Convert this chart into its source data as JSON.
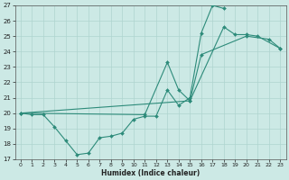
{
  "color": "#2d8b7a",
  "bg_color": "#cce9e5",
  "grid_major_color": "#aed4cf",
  "xlabel": "Humidex (Indice chaleur)",
  "ylim": [
    17,
    27
  ],
  "xlim": [
    -0.5,
    23.5
  ],
  "yticks": [
    17,
    18,
    19,
    20,
    21,
    22,
    23,
    24,
    25,
    26,
    27
  ],
  "xticks": [
    0,
    1,
    2,
    3,
    4,
    5,
    6,
    7,
    8,
    9,
    10,
    11,
    12,
    13,
    14,
    15,
    16,
    17,
    18,
    19,
    20,
    21,
    22,
    23
  ],
  "line1": {
    "x": [
      0,
      1,
      2,
      3,
      4,
      5,
      6,
      7,
      8,
      9,
      10,
      11,
      12,
      13,
      14,
      15,
      16,
      17,
      18
    ],
    "y": [
      20.0,
      19.9,
      19.9,
      19.1,
      18.2,
      17.3,
      17.4,
      18.4,
      18.5,
      18.7,
      19.6,
      19.8,
      19.8,
      21.5,
      20.5,
      21.0,
      25.2,
      27.0,
      26.8
    ]
  },
  "line2": {
    "x": [
      0,
      11,
      13,
      14,
      15,
      18,
      19,
      20,
      21,
      23
    ],
    "y": [
      20.0,
      19.9,
      23.3,
      21.5,
      20.8,
      25.6,
      25.1,
      25.1,
      25.0,
      24.2
    ]
  },
  "line3": {
    "x": [
      0,
      15,
      16,
      20,
      22,
      23
    ],
    "y": [
      20.0,
      20.8,
      23.8,
      25.0,
      24.8,
      24.2
    ]
  }
}
